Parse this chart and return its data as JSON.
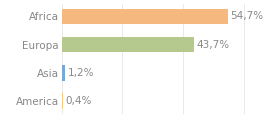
{
  "categories": [
    "America",
    "Asia",
    "Europa",
    "Africa"
  ],
  "values": [
    0.4,
    1.2,
    43.7,
    54.7
  ],
  "labels": [
    "0,4%",
    "1,2%",
    "43,7%",
    "54,7%"
  ],
  "bar_colors": [
    "#f5c87a",
    "#7aa8d4",
    "#b5c98e",
    "#f5b97f"
  ],
  "background_color": "#ffffff",
  "xlim": [
    0,
    70
  ],
  "label_fontsize": 7.5,
  "tick_fontsize": 7.5,
  "grid_color": "#e0e0e0",
  "text_color": "#888888"
}
